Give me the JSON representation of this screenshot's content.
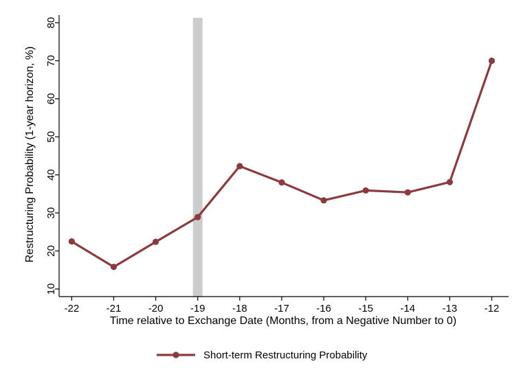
{
  "chart_data": {
    "type": "line",
    "title": "",
    "xlabel": "Time relative to Exchange Date (Months, from a Negative Number to 0)",
    "ylabel": "Restructuring Probability (1-year horizon, %)",
    "x": [
      -22,
      -21,
      -20,
      -19,
      -18,
      -17,
      -16,
      -15,
      -14,
      -13,
      -12
    ],
    "xticks": [
      -22,
      -21,
      -20,
      -19,
      -18,
      -17,
      -16,
      -15,
      -14,
      -13,
      -12
    ],
    "xlim": [
      -22.3,
      -11.6
    ],
    "yticks": [
      10,
      20,
      30,
      40,
      50,
      60,
      70,
      80
    ],
    "ylim": [
      8,
      82
    ],
    "grid": false,
    "legend_position": "bottom-center",
    "highlight_band": {
      "x": -19,
      "color": "#cccccc"
    },
    "series": [
      {
        "name": "Short-term Restructuring Probability",
        "color": "#8b3a3e",
        "values": [
          22.5,
          15.8,
          22.4,
          28.9,
          42.3,
          38.0,
          33.3,
          35.9,
          35.4,
          38.1,
          70.0
        ]
      }
    ]
  }
}
